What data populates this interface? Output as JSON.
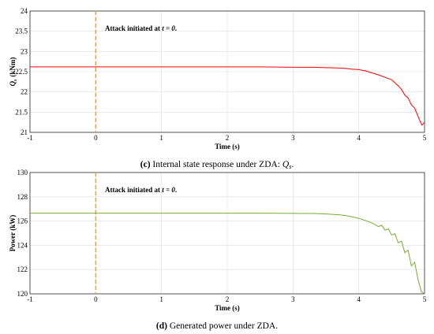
{
  "chart_data": [
    {
      "type": "line",
      "caption_label": "(c)",
      "caption_text": "Internal state response under ZDA:",
      "caption_math": "Q",
      "caption_sub": "s",
      "caption_end": ".",
      "ylabel_main": "Q",
      "ylabel_sub": "s",
      "ylabel_unit": "(kNm)",
      "xlabel": "Time (s)",
      "xlim": [
        -1,
        5
      ],
      "ylim": [
        21,
        24
      ],
      "xticks": [
        "-1",
        "0",
        "1",
        "2",
        "3",
        "4",
        "5"
      ],
      "yticks": [
        "21",
        "21.5",
        "22",
        "22.5",
        "23",
        "23.5",
        "24"
      ],
      "annotation_text": "Attack initiated at",
      "annotation_math": "t = 0",
      "annotation_end": ".",
      "attack_time": 0,
      "grid": true,
      "line_color": "#ff0000",
      "marker_color": "#f5a623",
      "series": [
        {
          "x": [
            -1,
            -0.5,
            0,
            0.5,
            1,
            1.5,
            2,
            2.5,
            3,
            3.3,
            3.5,
            3.7,
            3.8,
            3.9,
            4.0,
            4.1,
            4.2,
            4.3,
            4.4,
            4.5,
            4.6,
            4.65,
            4.7,
            4.75,
            4.8,
            4.85,
            4.9,
            4.93,
            4.96,
            5.0
          ],
          "y": [
            22.62,
            22.62,
            22.62,
            22.62,
            22.62,
            22.62,
            22.62,
            22.62,
            22.61,
            22.61,
            22.6,
            22.59,
            22.58,
            22.56,
            22.55,
            22.52,
            22.47,
            22.42,
            22.36,
            22.3,
            22.15,
            22.06,
            21.92,
            21.85,
            21.68,
            21.6,
            21.4,
            21.28,
            21.18,
            21.25
          ]
        }
      ]
    },
    {
      "type": "line",
      "caption_label": "(d)",
      "caption_text": "Generated power under ZDA.",
      "ylabel": "Power (kW)",
      "xlabel": "Time (s)",
      "xlim": [
        -1,
        5
      ],
      "ylim": [
        120,
        130
      ],
      "xticks": [
        "-1",
        "0",
        "1",
        "2",
        "3",
        "4",
        "5"
      ],
      "yticks": [
        "120",
        "122",
        "124",
        "126",
        "128",
        "130"
      ],
      "annotation_text": "Attack initiated at",
      "annotation_math": "t = 0",
      "annotation_end": ".",
      "attack_time": 0,
      "grid": true,
      "line_color": "#77ac30",
      "marker_color": "#f5a623",
      "series": [
        {
          "x": [
            -1,
            -0.5,
            0,
            0.5,
            1,
            1.5,
            2,
            2.5,
            3,
            3.3,
            3.5,
            3.7,
            3.8,
            3.9,
            4.0,
            4.1,
            4.2,
            4.3,
            4.35,
            4.4,
            4.45,
            4.5,
            4.55,
            4.6,
            4.65,
            4.7,
            4.75,
            4.8,
            4.85,
            4.9,
            4.95,
            5.0
          ],
          "y": [
            126.65,
            126.65,
            126.65,
            126.65,
            126.65,
            126.65,
            126.65,
            126.65,
            126.63,
            126.62,
            126.58,
            126.52,
            126.45,
            126.35,
            126.22,
            126.05,
            125.85,
            125.55,
            125.65,
            125.25,
            125.35,
            124.85,
            124.95,
            124.2,
            124.35,
            123.4,
            123.6,
            122.3,
            122.6,
            121.2,
            120.2,
            120.0
          ]
        }
      ]
    }
  ]
}
